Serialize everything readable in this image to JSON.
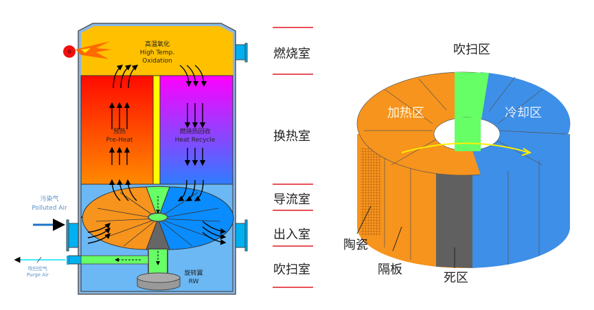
{
  "left_diagram": {
    "oxidation_cn": "高温氧化",
    "oxidation_en1": "High Temp.",
    "oxidation_en2": "Oxidation",
    "preheat_cn": "预热",
    "preheat_en": "Pre-Heat",
    "recycle_cn": "燃烧热回收",
    "recycle_en": "Heat Recycle",
    "polluted_cn": "污染气",
    "polluted_en": "Polluted Air",
    "purge_cn": "吹扫空气",
    "purge_en": "Purge Air",
    "rw_cn": "旋转翼",
    "rw_en": "RW"
  },
  "chamber_labels": [
    "燃烧室",
    "换热室",
    "导流室",
    "出入室",
    "吹扫室"
  ],
  "right_diagram": {
    "purge_zone": "吹扫区",
    "heat_zone": "加热区",
    "cool_zone": "冷却区",
    "ceramic": "陶瓷",
    "partition": "隔板",
    "dead_zone": "死区"
  },
  "colors": {
    "combustion": "#ffc000",
    "preheat": "#ff2000",
    "recycle": "#ff00ff",
    "lower": "#6bb8f5",
    "heat_zone": "#f7941d",
    "cool_zone": "#3d8fe8",
    "purge_zone": "#66ff66",
    "dead_zone": "#606060",
    "divider": "#e0161e"
  }
}
